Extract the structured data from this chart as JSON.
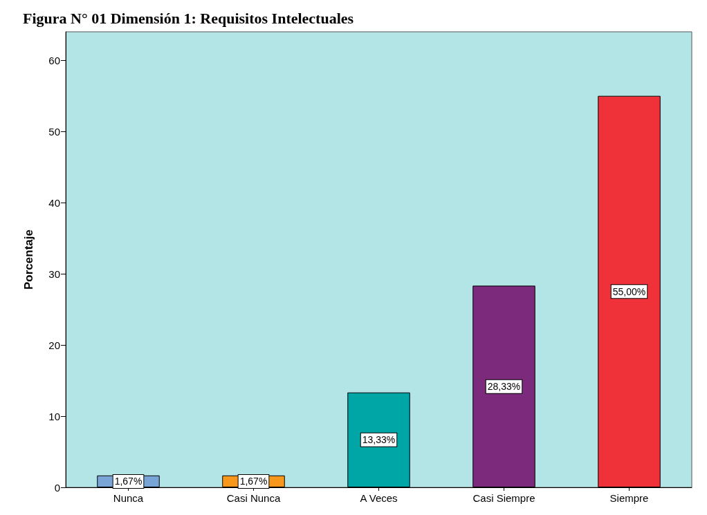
{
  "chart_data": {
    "type": "bar",
    "title": "Figura N° 01 Dimensión 1: Requisitos Intelectuales",
    "ylabel": "Porcentaje",
    "categories": [
      "Nunca",
      "Casi Nunca",
      "A Veces",
      "Casi Siempre",
      "Siempre"
    ],
    "values": [
      1.67,
      1.67,
      13.33,
      28.33,
      55
    ],
    "colors": [
      "#79a5d6",
      "#f7981d",
      "#00a5a5",
      "#7b2a7c",
      "#ef3239"
    ],
    "value_labels": [
      "1,67%",
      "1,67%",
      "13,33%",
      "28,33%",
      "55,00%"
    ],
    "ylim": [
      0,
      64
    ],
    "yticks": [
      0,
      10,
      20,
      30,
      40,
      50,
      60
    ],
    "grid": false
  }
}
